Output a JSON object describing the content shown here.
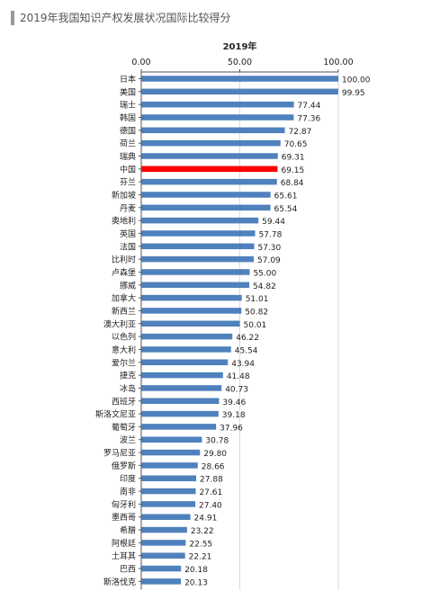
{
  "caption": "2019年我国知识产权发展状况国际比较得分",
  "colors": {
    "bar": "#4f81bd",
    "highlight": "#ff0000",
    "grid": "#d9d9d9"
  },
  "chart_data": {
    "type": "bar",
    "orientation": "horizontal",
    "title": "2019年",
    "xlim": [
      0,
      100
    ],
    "x_ticks": [
      "0.00",
      "50.00",
      "100.00"
    ],
    "axis_position": "top",
    "grid": true,
    "highlight_category": "中国",
    "categories": [
      "日本",
      "美国",
      "瑞士",
      "韩国",
      "德国",
      "荷兰",
      "瑞典",
      "中国",
      "芬兰",
      "新加坡",
      "丹麦",
      "奥地利",
      "英国",
      "法国",
      "比利时",
      "卢森堡",
      "挪威",
      "加拿大",
      "新西兰",
      "澳大利亚",
      "以色列",
      "意大利",
      "爱尔兰",
      "捷克",
      "冰岛",
      "西班牙",
      "斯洛文尼亚",
      "葡萄牙",
      "波兰",
      "罗马尼亚",
      "俄罗斯",
      "印度",
      "南非",
      "匈牙利",
      "墨西哥",
      "希腊",
      "阿根廷",
      "土耳其",
      "巴西",
      "斯洛伐克"
    ],
    "values": [
      100.0,
      99.95,
      77.44,
      77.36,
      72.87,
      70.65,
      69.31,
      69.15,
      68.84,
      65.61,
      65.54,
      59.44,
      57.78,
      57.3,
      57.09,
      55.0,
      54.82,
      51.01,
      50.82,
      50.01,
      46.22,
      45.54,
      43.94,
      41.48,
      40.73,
      39.46,
      39.18,
      37.96,
      30.78,
      29.8,
      28.66,
      27.88,
      27.61,
      27.4,
      24.91,
      23.22,
      22.55,
      22.21,
      20.18,
      20.13
    ],
    "value_labels": [
      "100.00",
      "99.95",
      "77.44",
      "77.36",
      "72.87",
      "70.65",
      "69.31",
      "69.15",
      "68.84",
      "65.61",
      "65.54",
      "59.44",
      "57.78",
      "57.30",
      "57.09",
      "55.00",
      "54.82",
      "51.01",
      "50.82",
      "50.01",
      "46.22",
      "45.54",
      "43.94",
      "41.48",
      "40.73",
      "39.46",
      "39.18",
      "37.96",
      "30.78",
      "29.80",
      "28.66",
      "27.88",
      "27.61",
      "27.40",
      "24.91",
      "23.22",
      "22.55",
      "22.21",
      "20.18",
      "20.13"
    ]
  }
}
